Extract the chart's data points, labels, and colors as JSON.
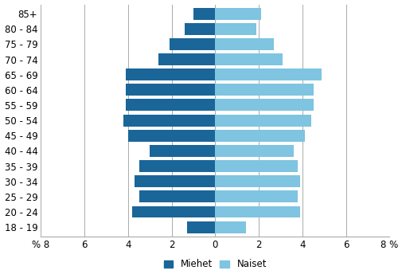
{
  "age_groups": [
    "18 - 19",
    "20 - 24",
    "25 - 29",
    "30 - 34",
    "35 - 39",
    "40 - 44",
    "45 - 49",
    "50 - 54",
    "55 - 59",
    "60 - 64",
    "65 - 69",
    "70 - 74",
    "75 - 79",
    "80 - 84",
    "85+"
  ],
  "men": [
    1.3,
    3.8,
    3.5,
    3.7,
    3.5,
    3.0,
    4.0,
    4.2,
    4.1,
    4.1,
    4.1,
    2.6,
    2.1,
    1.4,
    1.0
  ],
  "women": [
    1.4,
    3.9,
    3.8,
    3.9,
    3.8,
    3.6,
    4.1,
    4.4,
    4.5,
    4.5,
    4.9,
    3.1,
    2.7,
    1.9,
    2.1
  ],
  "men_color": "#1a6699",
  "women_color": "#7fc4e0",
  "xlim": 8,
  "legend_miehet": "Miehet",
  "legend_naiset": "Naiset",
  "background_color": "#ffffff",
  "bar_height": 0.78,
  "grid_color": "#aaaaaa",
  "tick_fontsize": 8.5,
  "label_fontsize": 8.5
}
